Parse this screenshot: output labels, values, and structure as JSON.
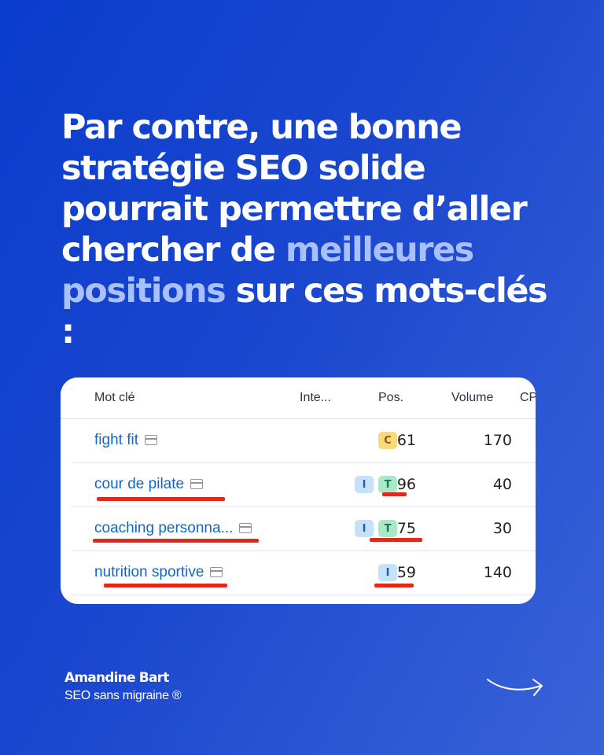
{
  "headline": {
    "part1": "Par contre, une bonne stratégie SEO solide pourrait permettre d’aller chercher de ",
    "highlight": "meilleures positions",
    "part2": " sur ces mots-clés :"
  },
  "table": {
    "columns": {
      "keyword": "Mot clé",
      "intent": "Inte...",
      "position": "Pos.",
      "volume": "Volume",
      "cpc": "CPC"
    },
    "rows": [
      {
        "keyword": "fight fit",
        "intents": [
          "C"
        ],
        "position": "61",
        "volume": "170"
      },
      {
        "keyword": "cour de pilate",
        "intents": [
          "I",
          "T"
        ],
        "position": "96",
        "volume": "40"
      },
      {
        "keyword": "coaching personna...",
        "intents": [
          "I",
          "T"
        ],
        "position": "75",
        "volume": "30"
      },
      {
        "keyword": "nutrition sportive",
        "intents": [
          "I"
        ],
        "position": "59",
        "volume": "140"
      }
    ]
  },
  "footer": {
    "author": "Amandine Bart",
    "tagline": "SEO sans migraine ®"
  },
  "colors": {
    "background": "#1b47cf",
    "highlight": "#a9c0ff",
    "underline": "#e2281b",
    "link": "#1466c4"
  },
  "icons": {
    "keyword_icon": "serp-feature-icon",
    "next": "arrow-right-icon"
  }
}
